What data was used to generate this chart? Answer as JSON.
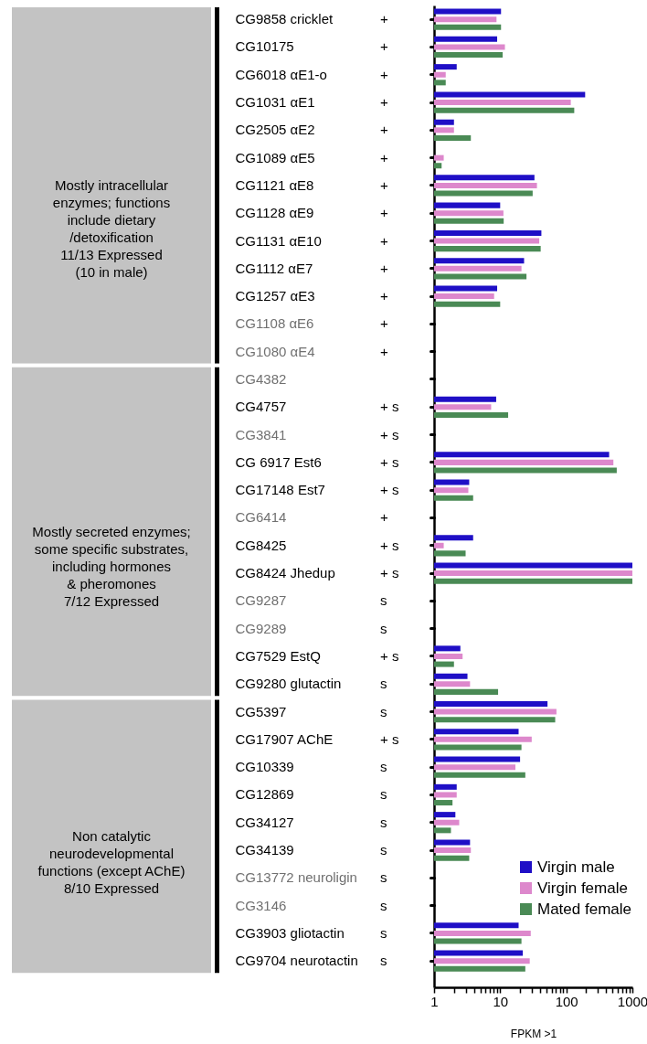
{
  "chart_data": {
    "type": "bar",
    "orientation": "horizontal",
    "log": "x",
    "xlabel": "FPKM >1",
    "legend": "bottom right",
    "categories": [
      "CG9858 cricklet",
      "CG10175",
      "CG6018 αE1-o",
      "CG1031 αE1",
      "CG2505 αE2",
      "CG1089 αE5",
      "CG1121 αE8",
      "CG1128 αE9",
      "CG1131 αE10",
      "CG1112 αE7",
      "CG1257 αE3",
      "CG1108 αE6",
      "CG1080 αE4",
      "CG4382",
      "CG4757",
      "CG3841",
      "CG 6917 Est6",
      "CG17148 Est7",
      "CG6414",
      "CG8425",
      "CG8424 Jhedup",
      "CG9287",
      "CG9289",
      "CG7529 EstQ",
      "CG9280 glutactin",
      "CG5397",
      "CG17907 AChE",
      "CG10339",
      "CG12869",
      "CG34127",
      "CG34139",
      "CG13772 neuroligin",
      "CG3146",
      "CG3903 gliotactin",
      "CG9704 neurotactin"
    ],
    "y2_categories": [
      "+",
      "+",
      "+",
      "+",
      "+",
      "+",
      "+",
      "+",
      "+",
      "+",
      "+",
      "+",
      "+",
      null,
      "+ s",
      "+ s",
      "+ s",
      "+ s",
      "+",
      "+ s",
      "+ s",
      "s",
      "s",
      "+ s",
      "s",
      "s",
      "+ s",
      "s",
      "s",
      "s",
      "s",
      "s",
      "s",
      "s",
      "s"
    ],
    "series": [
      {
        "name": "Virgin male",
        "color": "#1f0fc6",
        "values": [
          10.3,
          9.0,
          2.2,
          193,
          2.0,
          null,
          33,
          10,
          42,
          23,
          9.0,
          null,
          null,
          null,
          8.7,
          null,
          445,
          3.4,
          null,
          3.9,
          1000,
          null,
          null,
          2.5,
          3.2,
          52,
          19,
          20,
          2.2,
          2.1,
          3.5,
          null,
          null,
          19,
          22
        ]
      },
      {
        "name": "Virgin female",
        "color": "#dd88cc",
        "values": [
          8.8,
          11.8,
          1.5,
          117,
          2.0,
          1.4,
          36,
          11.2,
          39,
          21,
          8.1,
          null,
          null,
          null,
          7.3,
          null,
          516,
          3.3,
          null,
          1.4,
          1000,
          null,
          null,
          2.7,
          3.5,
          71,
          30,
          17,
          2.2,
          2.4,
          3.6,
          null,
          null,
          29,
          28
        ]
      },
      {
        "name": "Mated female",
        "color": "#4a8a55",
        "values": [
          10.3,
          10.9,
          1.5,
          132,
          3.6,
          1.3,
          31,
          11.3,
          41,
          25,
          10,
          null,
          null,
          null,
          13.2,
          null,
          580,
          3.9,
          null,
          3.0,
          1000,
          null,
          null,
          2.0,
          9.3,
          68,
          21,
          24,
          1.9,
          1.8,
          3.4,
          null,
          null,
          21,
          24
        ]
      }
    ],
    "xlim": [
      1,
      1000
    ],
    "xticks": [
      1,
      {
        "value": 2,
        "label": null
      },
      {
        "value": 3,
        "label": null
      },
      {
        "value": 4,
        "label": null
      },
      {
        "value": 5,
        "label": null
      },
      {
        "value": 6,
        "label": null
      },
      {
        "value": 7,
        "label": null
      },
      {
        "value": 8,
        "label": null
      },
      {
        "value": 9,
        "label": null
      },
      10,
      {
        "value": 20,
        "label": null
      },
      {
        "value": 30,
        "label": null
      },
      {
        "value": 40,
        "label": null
      },
      {
        "value": 50,
        "label": null
      },
      {
        "value": 60,
        "label": null
      },
      {
        "value": 70,
        "label": null
      },
      {
        "value": 80,
        "label": null
      },
      {
        "value": 90,
        "label": null
      },
      100,
      {
        "value": 200,
        "label": null
      },
      {
        "value": 300,
        "label": null
      },
      {
        "value": 400,
        "label": null
      },
      {
        "value": 500,
        "label": null
      },
      {
        "value": 600,
        "label": null
      },
      {
        "value": 700,
        "label": null
      },
      {
        "value": 800,
        "label": null
      },
      {
        "value": 900,
        "label": null
      },
      1000
    ],
    "annotations": [
      "Mostly intracellular\nenzymes; functions\ninclude dietary\n/detoxification\n\n11/13 Expressed\n(10 in male)",
      "Mostly secreted enzymes;\nsome specific substrates,\nincluding hormones\n& pheromones\n\n7/12 Expressed",
      "Non catalytic\nneurodevelopmental\nfunctions (except AChE)\n\n8/10 Expressed"
    ]
  }
}
